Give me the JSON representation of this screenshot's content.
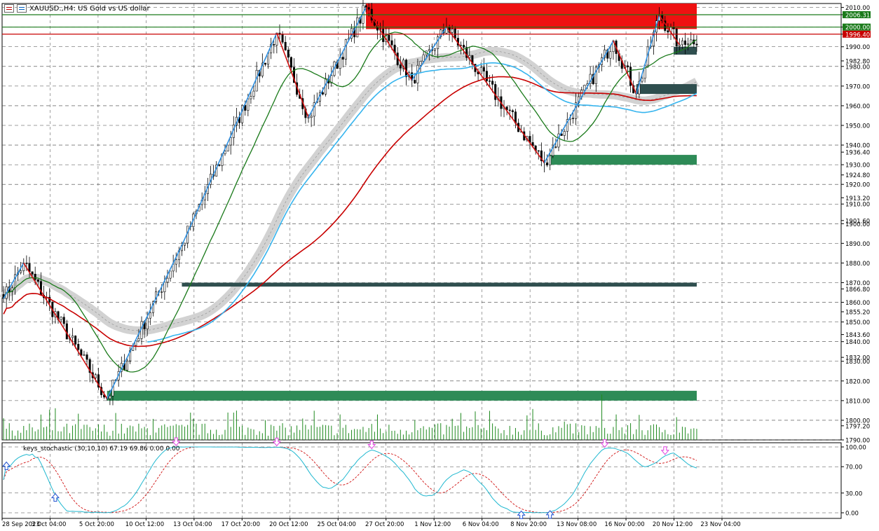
{
  "header": {
    "title": "XAUUSD.,H4:  US Gold vs US dollar"
  },
  "oscillator": {
    "label": "keys_stochastic (30,10,10) 67.19 69.86 0.00 0.00"
  },
  "colors": {
    "background": "#ffffff",
    "grid": "#404040",
    "bull": "#1e7d1e",
    "zigzag_up": "#2f8fe0",
    "zigzag_down": "#d01010",
    "ma_fast": "#1a7a1a",
    "ma_slow_red": "#c80000",
    "ma_blue": "#35b4ee",
    "band": "#d2d2d2",
    "supply_zone": "#ee1111",
    "demand_zone": "#2e8b57",
    "dark_zone": "#2f4f4f",
    "volume": "#1f8a1f",
    "stoch_main": "#20b8d0",
    "stoch_signal": "#d01010",
    "arrow_up": "#2050d0",
    "arrow_down": "#e040e0"
  },
  "chart_data": {
    "type": "candlestick",
    "symbol": "XAUUSD.",
    "timeframe": "H4",
    "price_axis_labels": [
      "2010.00",
      "2006.31",
      "2000.00",
      "1996.40",
      "1990.00",
      "1982.80",
      "1980.00",
      "1970.00",
      "1960.00",
      "1950.00",
      "1940.00",
      "1936.40",
      "1930.00",
      "1924.80",
      "1920.00",
      "1913.20",
      "1910.00",
      "1901.60",
      "1900.00",
      "1890.00",
      "1880.00",
      "1870.00",
      "1866.80",
      "1860.00",
      "1855.20",
      "1850.00",
      "1843.60",
      "1840.00",
      "1832.00",
      "1830.00",
      "1820.00",
      "1810.00",
      "1800.00",
      "1797.20",
      "1790.00"
    ],
    "highlighted_price_labels": [
      "2006.31",
      "2000.00",
      "1996.40"
    ],
    "price_range": [
      1790,
      2012
    ],
    "time_axis_labels": [
      "28 Sep 2023",
      "3 Oct 04:00",
      "5 Oct 20:00",
      "10 Oct 12:00",
      "13 Oct 04:00",
      "17 Oct 20:00",
      "20 Oct 12:00",
      "25 Oct 04:00",
      "27 Oct 20:00",
      "1 Nov 12:00",
      "6 Nov 04:00",
      "8 Nov 20:00",
      "13 Nov 08:00",
      "16 Nov 00:00",
      "20 Nov 12:00",
      "23 Nov 04:00"
    ],
    "zigzag_pivots": [
      {
        "bar": 0,
        "price": 1862
      },
      {
        "bar": 7,
        "price": 1880
      },
      {
        "bar": 36,
        "price": 1811
      },
      {
        "bar": 62,
        "price": 1889
      },
      {
        "bar": 95,
        "price": 1997
      },
      {
        "bar": 106,
        "price": 1954
      },
      {
        "bar": 126,
        "price": 2010
      },
      {
        "bar": 142,
        "price": 1973
      },
      {
        "bar": 154,
        "price": 2000
      },
      {
        "bar": 188,
        "price": 1931
      },
      {
        "bar": 212,
        "price": 1993
      },
      {
        "bar": 220,
        "price": 1966
      },
      {
        "bar": 228,
        "price": 2006
      },
      {
        "bar": 235,
        "price": 1991
      }
    ],
    "zones": [
      {
        "kind": "supply",
        "from_bar": 126,
        "to_bar": 250,
        "low": 1999,
        "high": 2012
      },
      {
        "kind": "demand",
        "from_bar": 190,
        "to_bar": 242,
        "low": 1930,
        "high": 1935
      },
      {
        "kind": "demand",
        "from_bar": 36,
        "to_bar": 242,
        "low": 1810,
        "high": 1815
      },
      {
        "kind": "dark",
        "from_bar": 62,
        "to_bar": 242,
        "low": 1868,
        "high": 1870
      },
      {
        "kind": "dark",
        "from_bar": 220,
        "to_bar": 242,
        "low": 1966,
        "high": 1971
      },
      {
        "kind": "dark",
        "from_bar": 233,
        "to_bar": 242,
        "low": 1986,
        "high": 1990
      }
    ],
    "horizontal_lines": [
      {
        "price": 2006.31,
        "color": "#1a7a1a"
      },
      {
        "price": 2000.0,
        "color": "#1a7a1a"
      },
      {
        "price": 1996.4,
        "color": "#c80000"
      }
    ],
    "oscillator": {
      "name": "keys_stochastic (30,10,10)",
      "main": 67.19,
      "signal": 69.86,
      "levels": [
        0,
        30,
        70,
        100
      ],
      "axis_labels": [
        "100.00",
        "70.00",
        "30.00",
        "0.00"
      ]
    }
  }
}
